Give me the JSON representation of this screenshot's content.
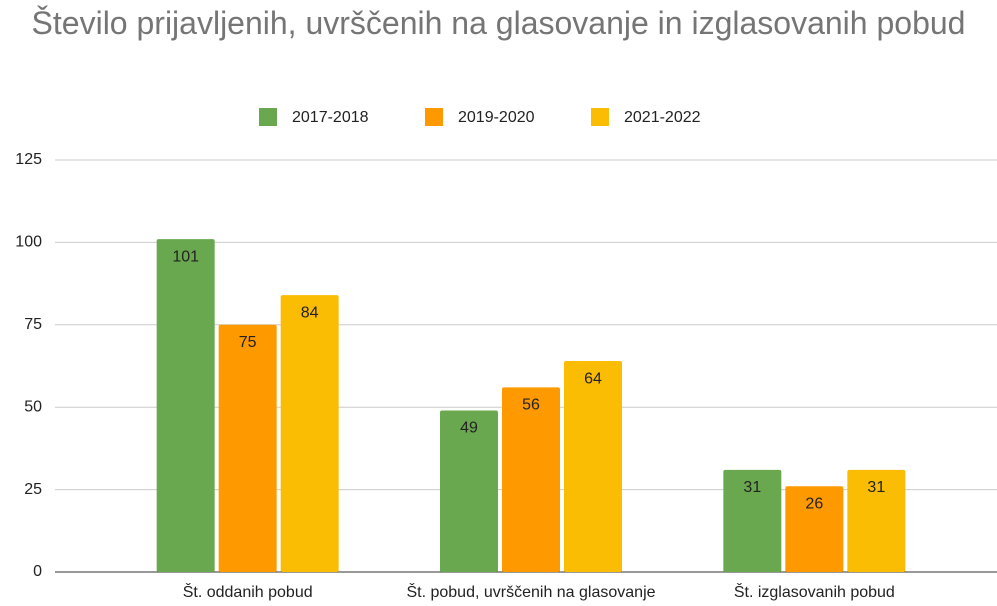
{
  "chart_data": {
    "type": "bar",
    "title": "Število prijavljenih, uvrščenih na glasovanje in izglasovanih pobud",
    "categories": [
      "Št. oddanih pobud",
      "Št. pobud, uvrščenih na glasovanje",
      "Št. izglasovanih pobud"
    ],
    "series": [
      {
        "name": "2017-2018",
        "color": "#6aa84f",
        "values": [
          101,
          49,
          31
        ]
      },
      {
        "name": "2019-2020",
        "color": "#ff9900",
        "values": [
          75,
          56,
          26
        ]
      },
      {
        "name": "2021-2022",
        "color": "#fbbc04",
        "values": [
          84,
          64,
          31
        ]
      }
    ],
    "ylim": [
      0,
      125
    ],
    "yticks": [
      0,
      25,
      50,
      75,
      100,
      125
    ],
    "grid": true,
    "legend": "top"
  }
}
